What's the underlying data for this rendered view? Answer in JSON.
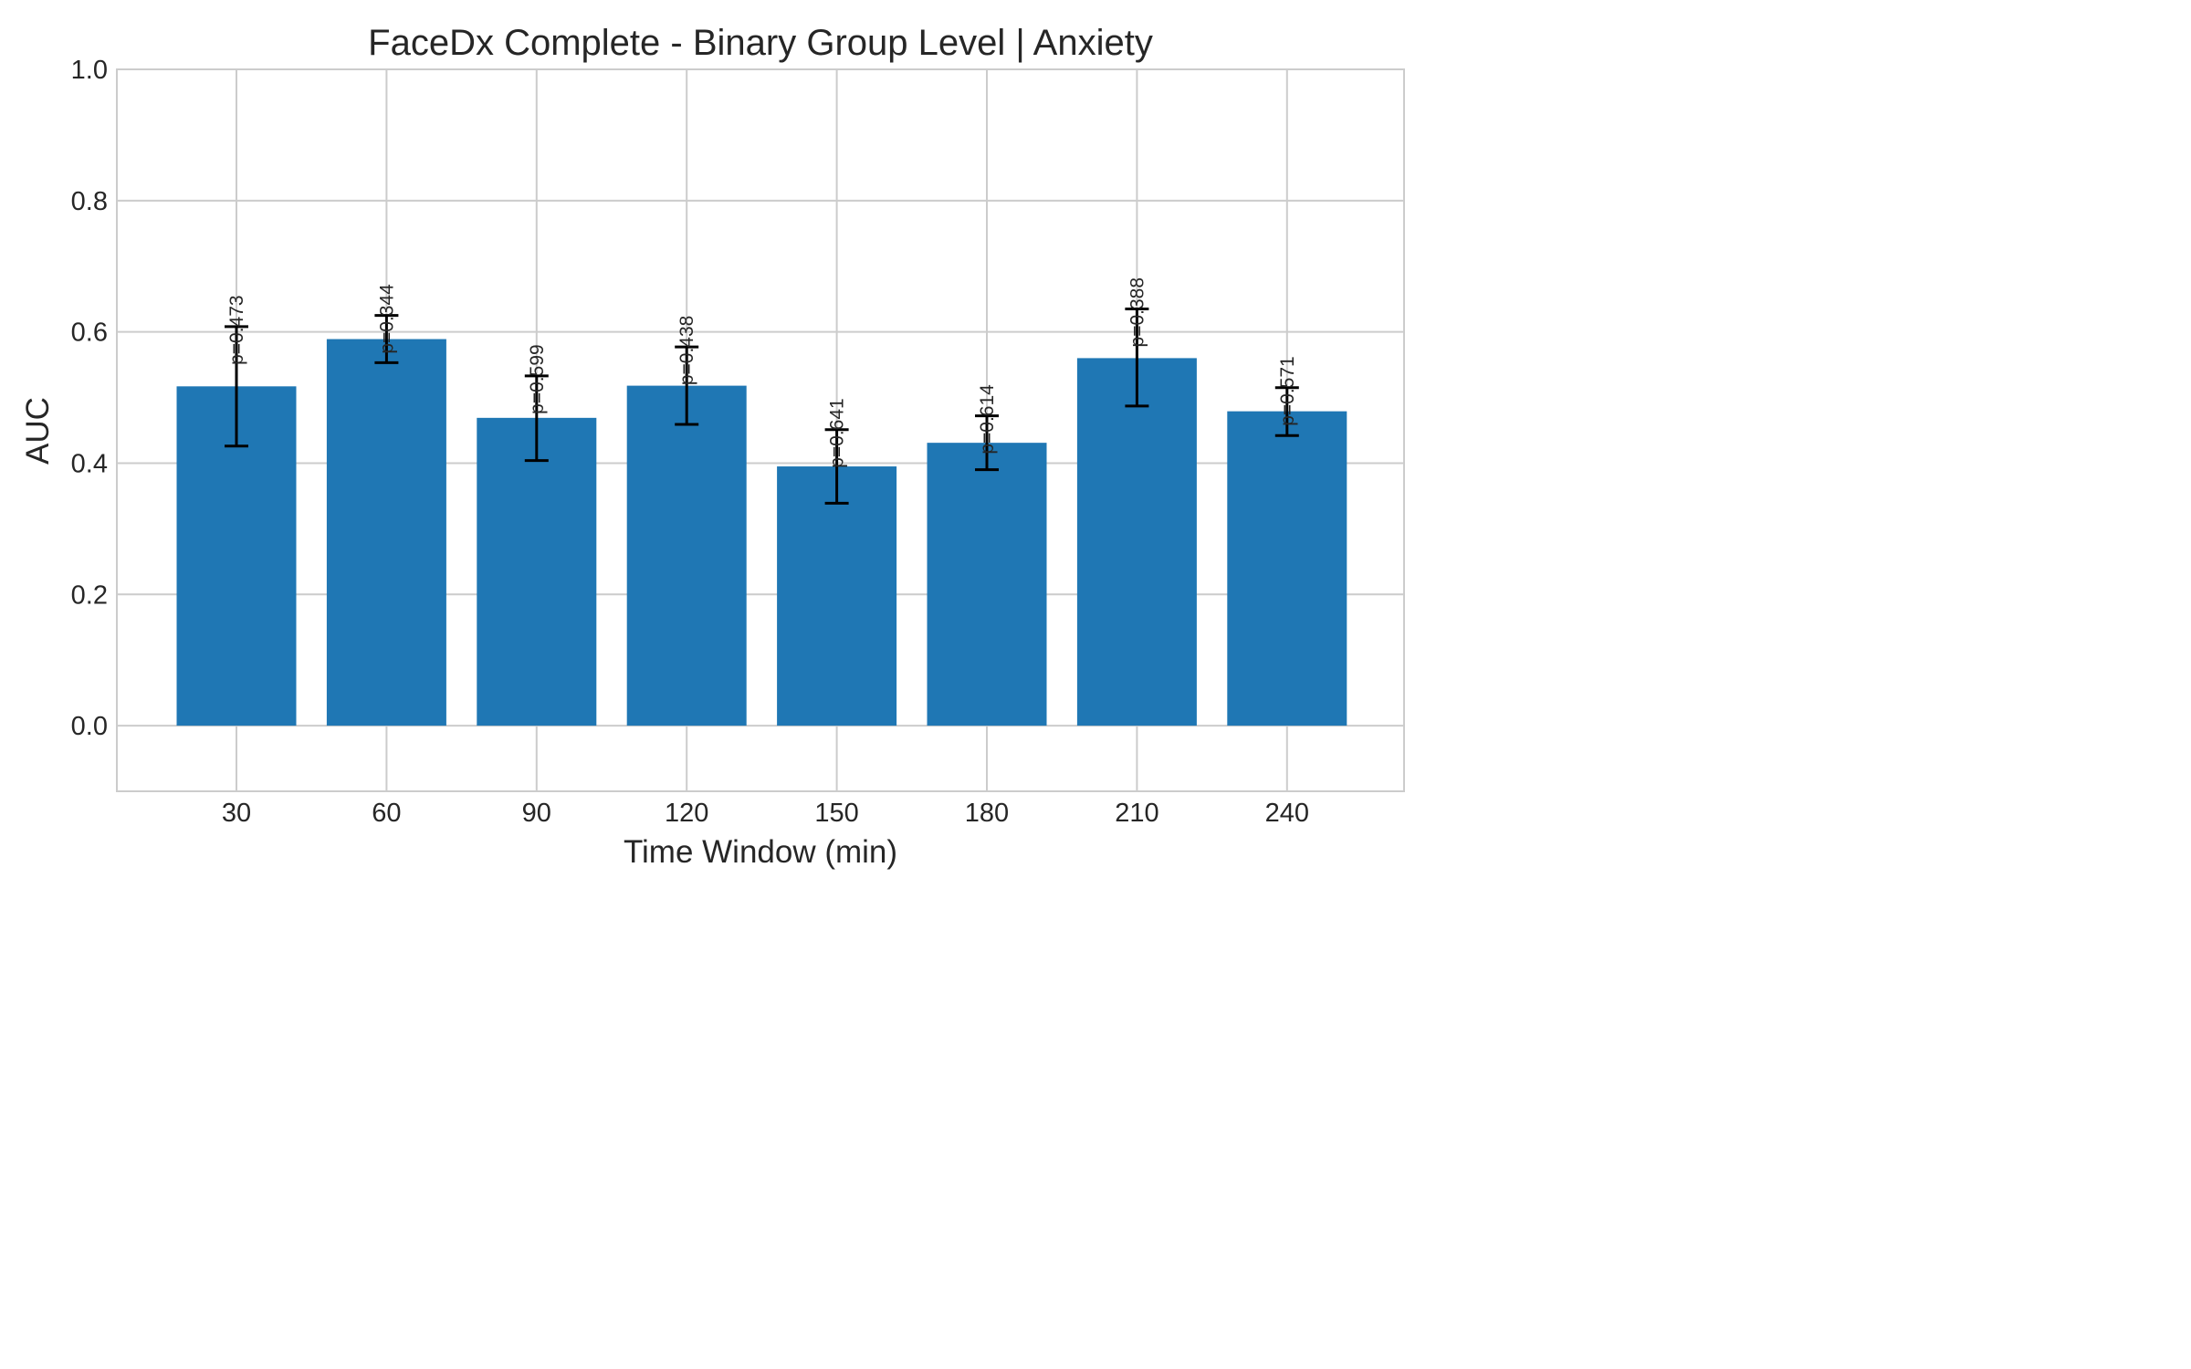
{
  "chart_data": {
    "type": "bar",
    "title": "FaceDx Complete - Binary Group Level | Anxiety",
    "xlabel": "Time Window (min)",
    "ylabel": "AUC",
    "ylim": [
      -0.1,
      1.0
    ],
    "yticks": [
      "0.0",
      "0.2",
      "0.4",
      "0.6",
      "0.8",
      "1.0"
    ],
    "grid": true,
    "bar_color": "#1f77b4",
    "errorbar_color": "#000000",
    "categories": [
      "30",
      "60",
      "90",
      "120",
      "150",
      "180",
      "210",
      "240"
    ],
    "values": [
      0.517,
      0.589,
      0.469,
      0.518,
      0.395,
      0.431,
      0.56,
      0.479
    ],
    "error_low": [
      0.426,
      0.553,
      0.404,
      0.459,
      0.339,
      0.39,
      0.487,
      0.442
    ],
    "error_high": [
      0.608,
      0.625,
      0.533,
      0.577,
      0.451,
      0.472,
      0.635,
      0.515
    ],
    "annotations": [
      "p=0.473",
      "p=0.344",
      "p=0.599",
      "p=0.438",
      "p=0.641",
      "p=0.614",
      "p=0.388",
      "p=0.571"
    ]
  }
}
